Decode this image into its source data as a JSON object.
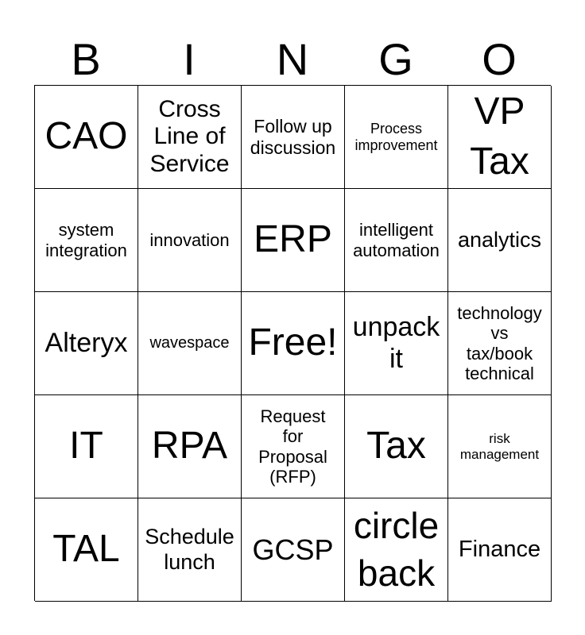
{
  "header": [
    "B",
    "I",
    "N",
    "G",
    "O"
  ],
  "cells": [
    "CAO",
    "Cross\nLine of\nService",
    "Follow up\ndiscussion",
    "Process\nimprovement",
    "VP\nTax",
    "system\nintegration",
    "innovation",
    "ERP",
    "intelligent\nautomation",
    "analytics",
    "Alteryx",
    "wavespace",
    "Free!",
    "unpack\nit",
    "technology\nvs\ntax/book\ntechnical",
    "IT",
    "RPA",
    "Request\nfor\nProposal\n(RFP)",
    "Tax",
    "risk\nmanagement",
    "TAL",
    "Schedule\nlunch",
    "GCSP",
    "circle\nback",
    "Finance"
  ]
}
